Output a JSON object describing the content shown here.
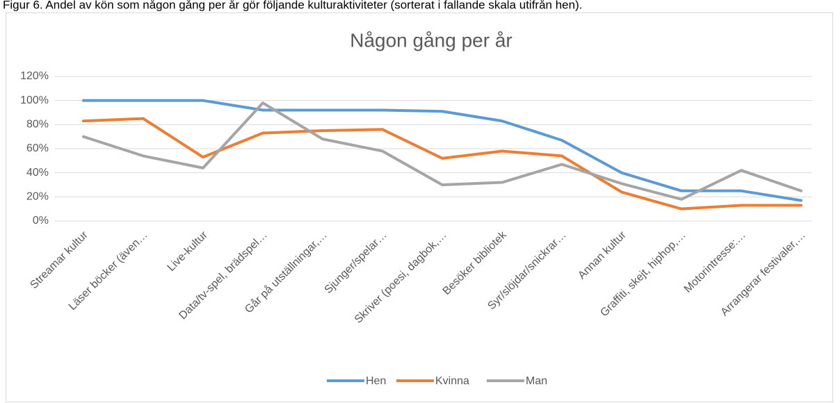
{
  "caption": "Figur 6. Andel av kön som någon gång per år gör följande kulturaktiviteter (sorterat i fallande skala utifrån hen).",
  "chart_data": {
    "type": "line",
    "title": "Någon gång per år",
    "categories": [
      "Streamar kultur",
      "Läser böcker (även…",
      "Live-kultur",
      "Data/tv-spel, brädspel…",
      "Går på utställningar,…",
      "Sjunger/spelar…",
      "Skriver (poesi, dagbok,…",
      "Besöker bibliotek",
      "Syr/slöjdar/snickrar…",
      "Annan kultur",
      "Graffiti, skejt, hiphop,…",
      "Motorintresse:…",
      "Arrangerar festivaler,…"
    ],
    "series": [
      {
        "name": "Hen",
        "color": "#5b9bd5",
        "values": [
          100,
          100,
          100,
          92,
          92,
          92,
          91,
          83,
          67,
          40,
          25,
          25,
          17
        ]
      },
      {
        "name": "Kvinna",
        "color": "#ed7d31",
        "values": [
          83,
          85,
          53,
          73,
          75,
          76,
          52,
          58,
          54,
          24,
          10,
          13,
          13
        ]
      },
      {
        "name": "Man",
        "color": "#a5a5a5",
        "values": [
          70,
          54,
          44,
          98,
          68,
          58,
          30,
          32,
          47,
          31,
          18,
          42,
          25
        ]
      }
    ],
    "ylim": [
      0,
      120
    ],
    "yticks": [
      {
        "value": 0,
        "label": "0%"
      },
      {
        "value": 20,
        "label": "20%"
      },
      {
        "value": 40,
        "label": "40%"
      },
      {
        "value": 60,
        "label": "60%"
      },
      {
        "value": 80,
        "label": "80%"
      },
      {
        "value": 100,
        "label": "100%"
      },
      {
        "value": 120,
        "label": "120%"
      }
    ],
    "grid": true,
    "legend": "bottom"
  }
}
